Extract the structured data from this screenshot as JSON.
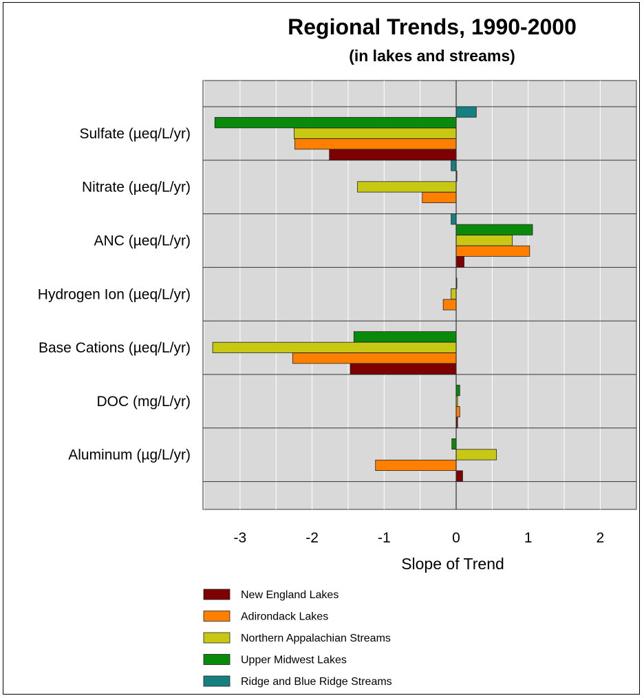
{
  "chart_data": {
    "type": "bar",
    "orientation": "horizontal",
    "title": "Regional Trends, 1990-2000",
    "subtitle": "(in lakes and streams)",
    "xlabel": "Slope of Trend",
    "ylabel": "",
    "xlim": [
      -3.5,
      2.5
    ],
    "xticks": [
      -3,
      -2,
      -1,
      0,
      1,
      2
    ],
    "grid": true,
    "legend_position": "bottom-left",
    "categories": [
      "Sulfate (µeq/L/yr)",
      "Nitrate (µeq/L/yr)",
      "ANC (µeq/L/yr)",
      "Hydrogen Ion (µeq/L/yr)",
      "Base Cations (µeq/L/yr)",
      "DOC (mg/L/yr)",
      "Aluminum (µg/L/yr)"
    ],
    "series": [
      {
        "name": "Ridge and Blue Ridge Streams",
        "color": "#148080",
        "values": [
          0.28,
          -0.07,
          -0.07,
          0,
          0,
          0,
          0
        ]
      },
      {
        "name": "Upper Midwest Lakes",
        "color": "#0a8a0a",
        "values": [
          -3.35,
          0.01,
          1.06,
          0.01,
          -1.42,
          0.05,
          -0.06
        ]
      },
      {
        "name": "Northern Appalachian Streams",
        "color": "#c8c814",
        "values": [
          -2.25,
          -1.37,
          0.78,
          -0.07,
          -3.38,
          0.02,
          0.56
        ]
      },
      {
        "name": "Adirondack Lakes",
        "color": "#ff8000",
        "values": [
          -2.24,
          -0.47,
          1.02,
          -0.18,
          -2.27,
          0.05,
          -1.12
        ]
      },
      {
        "name": "New England Lakes",
        "color": "#7f0000",
        "values": [
          -1.76,
          0,
          0.11,
          0,
          -1.47,
          0.02,
          0.09
        ]
      }
    ],
    "legend_order": [
      "New England Lakes",
      "Adirondack Lakes",
      "Northern Appalachian Streams",
      "Upper Midwest Lakes",
      "Ridge and Blue Ridge Streams"
    ],
    "plot_background": "#d9d9d9"
  }
}
